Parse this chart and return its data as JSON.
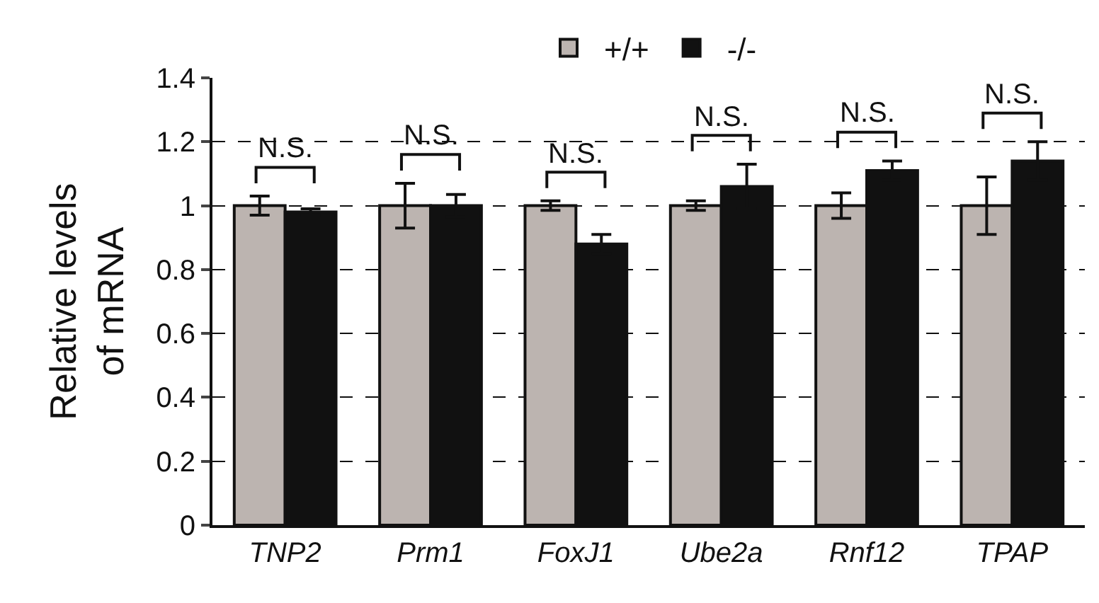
{
  "chart_data": {
    "type": "bar",
    "ylabel": "Relative levels of mRNA",
    "categories": [
      "TNP2",
      "Prm1",
      "FoxJ1",
      "Ube2a",
      "Rnf12",
      "TPAP"
    ],
    "series": [
      {
        "name": "+/+",
        "color": "#bcb4b0",
        "values": [
          1.0,
          1.0,
          1.0,
          1.0,
          1.0,
          1.0
        ],
        "errors": [
          0.03,
          0.07,
          0.015,
          0.015,
          0.04,
          0.09
        ]
      },
      {
        "name": "-/-",
        "color": "#111111",
        "values": [
          0.98,
          1.0,
          0.88,
          1.06,
          1.11,
          1.14
        ],
        "errors": [
          0.01,
          0.035,
          0.03,
          0.07,
          0.03,
          0.06
        ]
      }
    ],
    "ylim": [
      0,
      1.4
    ],
    "yticks": [
      0,
      0.2,
      0.4,
      0.6,
      0.8,
      1,
      1.2,
      1.4
    ],
    "grid": "y",
    "legend": "top",
    "annotations": [
      "N.S.",
      "N.S.",
      "N.S.",
      "N.S.",
      "N.S.",
      "N.S."
    ]
  }
}
